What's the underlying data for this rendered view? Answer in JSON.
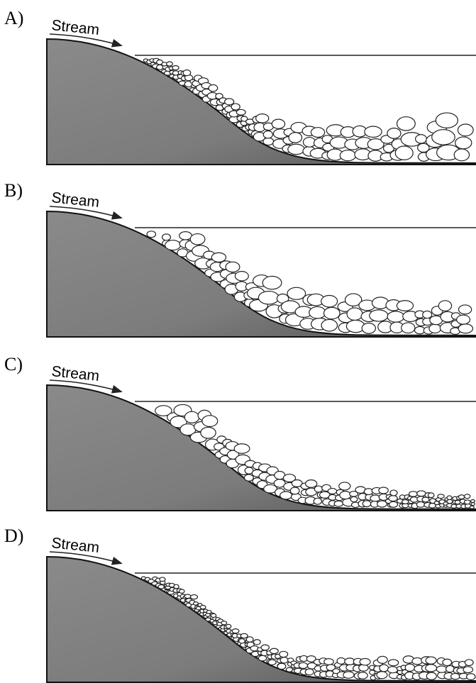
{
  "panels": [
    {
      "label": "A)",
      "stream": "Stream"
    },
    {
      "label": "B)",
      "stream": "Stream"
    },
    {
      "label": "C)",
      "stream": "Stream"
    },
    {
      "label": "D)",
      "stream": "Stream"
    }
  ]
}
